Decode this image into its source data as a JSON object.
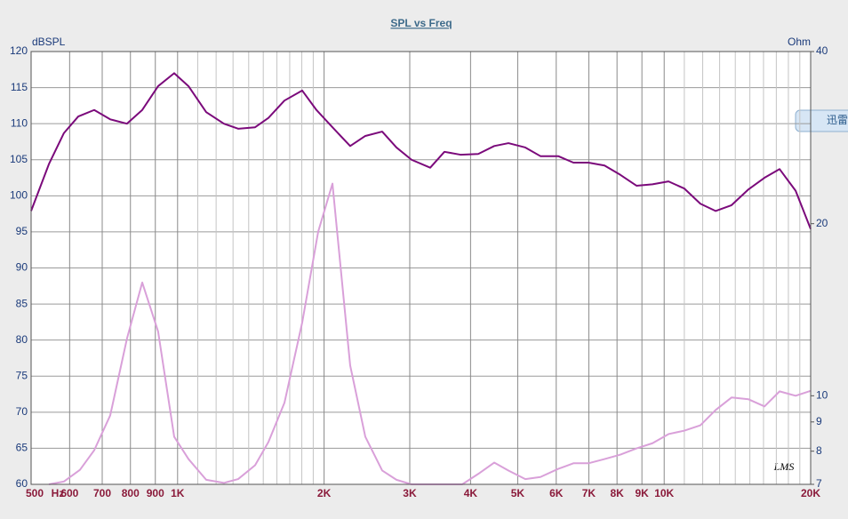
{
  "chart_data": {
    "type": "line",
    "title": "SPL vs Freq",
    "y_label": "dBSPL",
    "y2_label": "Ohm",
    "x_unit": "Hz",
    "logo": "LMS",
    "overlay_tab": "迅雷",
    "xscale": "log",
    "y2scale": "log",
    "xlim": [
      500,
      20000
    ],
    "xticks": [
      500,
      600,
      700,
      800,
      900,
      {
        "value": 1000,
        "label": "1K"
      },
      {
        "value": 2000,
        "label": "2K"
      },
      {
        "value": 3000,
        "label": "3K"
      },
      {
        "value": 4000,
        "label": "4K"
      },
      {
        "value": 5000,
        "label": "5K"
      },
      {
        "value": 6000,
        "label": "6K"
      },
      {
        "value": 7000,
        "label": "7K"
      },
      {
        "value": 8000,
        "label": "8K"
      },
      {
        "value": 9000,
        "label": "9K"
      },
      {
        "value": 10000,
        "label": "10K"
      },
      {
        "value": 20000,
        "label": "20K"
      }
    ],
    "x_minor_grid": [
      1100,
      1200,
      1300,
      1400,
      1500,
      1600,
      1700,
      1800,
      1900,
      11000,
      12000,
      13000,
      14000,
      15000,
      16000,
      17000,
      18000,
      19000
    ],
    "ylim": [
      60,
      120
    ],
    "yticks": [
      60,
      65,
      70,
      75,
      80,
      85,
      90,
      95,
      100,
      105,
      110,
      115,
      120
    ],
    "y2lim": [
      7,
      40
    ],
    "y2ticks": [
      7,
      8,
      9,
      10,
      20,
      40
    ],
    "grid": true,
    "series": [
      {
        "color": "#7b0a7b",
        "x": [
          500,
          544,
          584,
          625,
          674,
          727,
          787,
          846,
          912,
          984,
          1053,
          1145,
          1245,
          1332,
          1443,
          1537,
          1658,
          1803,
          1929,
          2081,
          2263,
          2431,
          2633,
          2817,
          3025,
          3305,
          3535,
          3813,
          4148,
          4474,
          4786,
          5184,
          5568,
          6058,
          6508,
          6988,
          7541,
          8129,
          8772,
          9461,
          10206,
          11004,
          11868,
          12752,
          13752,
          14906,
          16075,
          17266,
          18625,
          20000
        ],
        "values": [
          97.9,
          104.4,
          108.7,
          111,
          111.9,
          110.6,
          110,
          111.9,
          115.2,
          117,
          115.2,
          111.6,
          110,
          109.3,
          109.5,
          110.8,
          113.2,
          114.6,
          111.9,
          109.5,
          106.9,
          108.3,
          108.9,
          106.7,
          105,
          103.9,
          106.1,
          105.7,
          105.8,
          106.9,
          107.3,
          106.7,
          105.5,
          105.5,
          104.6,
          104.6,
          104.2,
          102.9,
          101.4,
          101.6,
          102,
          101,
          98.9,
          97.9,
          98.7,
          100.9,
          102.5,
          103.7,
          100.7,
          95.4
        ]
      },
      {
        "color": "#d9a0d9",
        "axis": "y2",
        "x": [
          544,
          584,
          630,
          674,
          727,
          787,
          846,
          912,
          984,
          1053,
          1145,
          1245,
          1332,
          1443,
          1537,
          1658,
          1803,
          1945,
          2081,
          2263,
          2431,
          2633,
          2817,
          3025,
          3846,
          4148,
          4474,
          4786,
          5184,
          5568,
          6058,
          6508,
          6988,
          7541,
          8129,
          8772,
          9461,
          10206,
          11004,
          11868,
          12752,
          13752,
          14906,
          16075,
          17266,
          18625,
          20000
        ],
        "values": [
          7,
          7.08,
          7.42,
          8.03,
          9.24,
          12.59,
          15.78,
          12.95,
          8.48,
          7.75,
          7.13,
          7.04,
          7.15,
          7.56,
          8.3,
          9.72,
          13.42,
          19.36,
          23.5,
          11.3,
          8.48,
          7.4,
          7.13,
          7,
          7,
          7.3,
          7.64,
          7.4,
          7.15,
          7.21,
          7.45,
          7.62,
          7.62,
          7.75,
          7.89,
          8.09,
          8.26,
          8.57,
          8.69,
          8.88,
          9.44,
          9.93,
          9.86,
          9.58,
          10.18,
          10,
          10.2
        ]
      }
    ]
  }
}
